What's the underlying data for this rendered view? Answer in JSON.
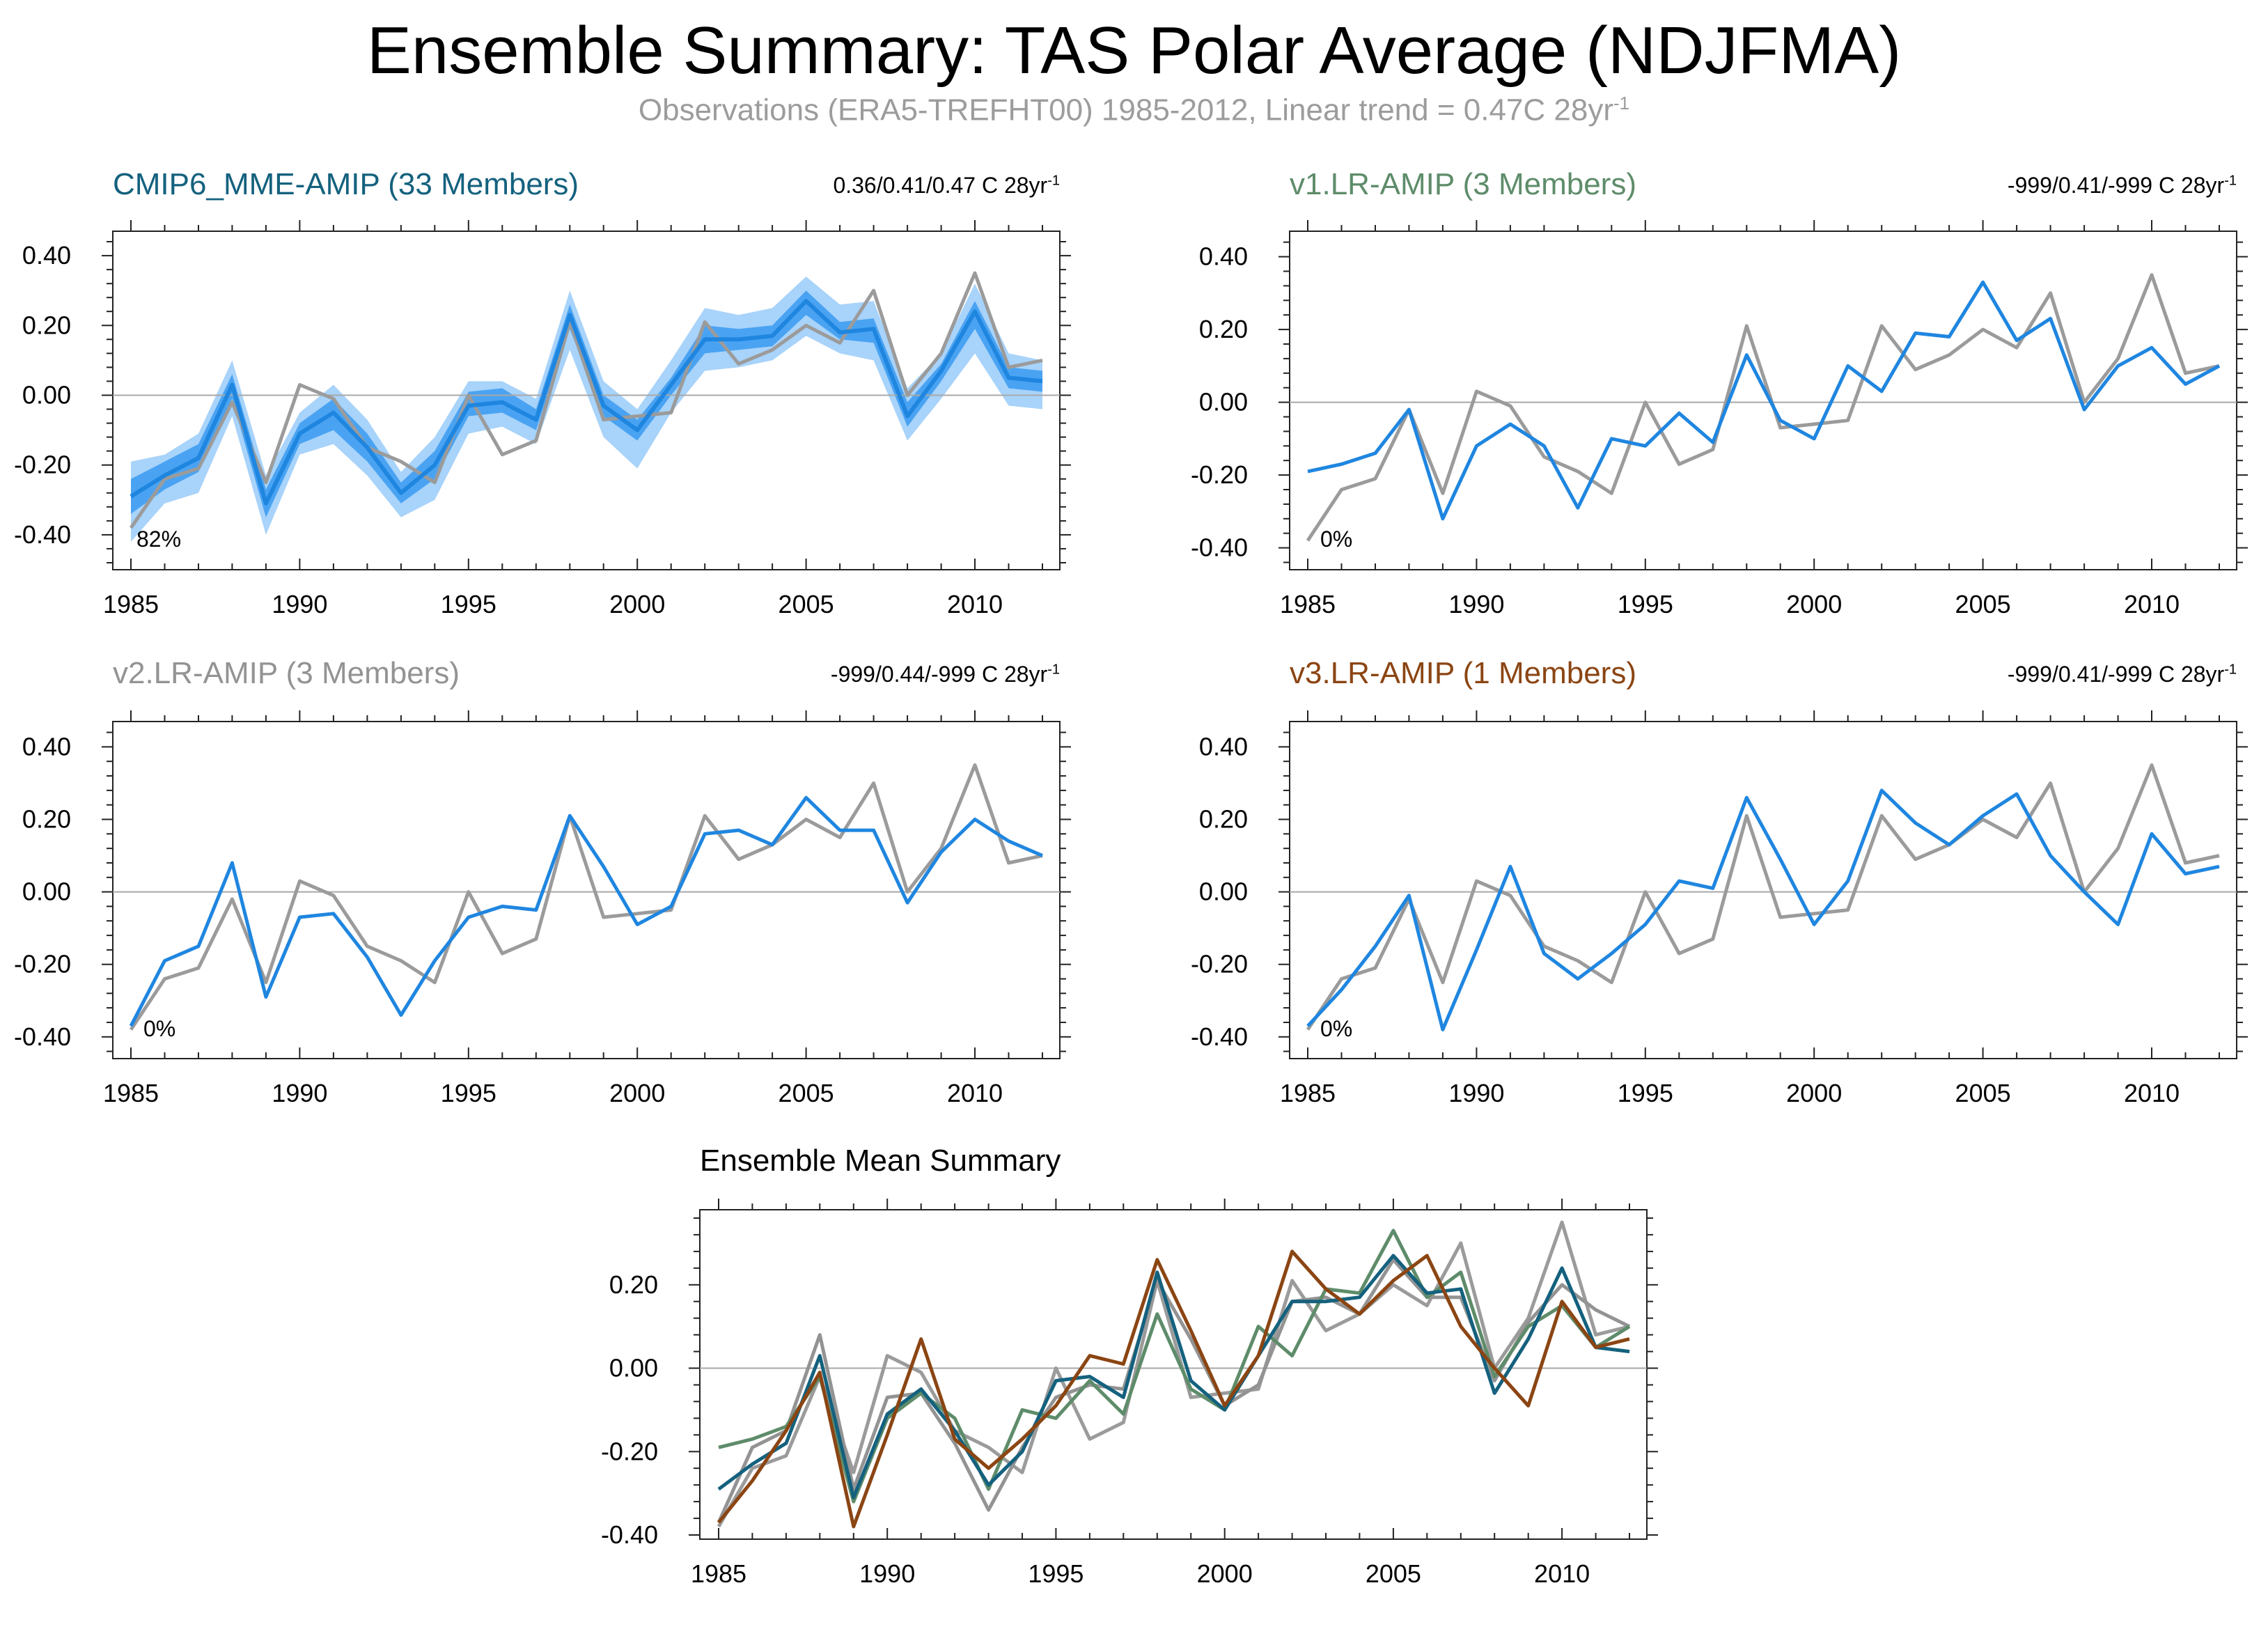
{
  "title": "Ensemble Summary: TAS Polar Average (NDJFMA)",
  "subtitle": {
    "text": "Observations (ERA5-TREFHT00) 1985-2012, Linear trend = 0.47C 28yr",
    "sup": "-1"
  },
  "colors": {
    "observations": "#9b9b9b",
    "model_line": "#1f86e0",
    "ens_inner_band": "#4aa3f2",
    "ens_outer_band": "#a8d3fa",
    "cmip6": "#14617e",
    "v1": "#5e8c6a",
    "v2": "#939393",
    "v3": "#8b4513"
  },
  "chart_data": [
    {
      "type": "line",
      "title": "CMIP6_MME-AMIP (33 Members)",
      "trend_text": "0.36/0.41/0.47 C 28yr",
      "trend_sup": "-1",
      "percent_label": "82%",
      "x": [
        1985,
        1986,
        1987,
        1988,
        1989,
        1990,
        1991,
        1992,
        1993,
        1994,
        1995,
        1996,
        1997,
        1998,
        1999,
        2000,
        2001,
        2002,
        2003,
        2004,
        2005,
        2006,
        2007,
        2008,
        2009,
        2010,
        2011,
        2012
      ],
      "xticks": [
        1985,
        1990,
        1995,
        2000,
        2005,
        2010
      ],
      "xtick_labels": [
        "1985",
        "1990",
        "1995",
        "2000",
        "2005",
        "2010"
      ],
      "yticks": [
        -0.4,
        -0.2,
        0.0,
        0.2,
        0.4
      ],
      "ytick_labels": [
        "-0.40",
        "-0.20",
        "0.00",
        "0.20",
        "0.40"
      ],
      "xlim": [
        1985,
        2012
      ],
      "ylim": [
        -0.5,
        0.47
      ],
      "grid": false,
      "zero_line": true,
      "bands": [
        {
          "name": "ensemble 10-90% range",
          "color_key": "ens_outer_band",
          "lower": [
            -0.42,
            -0.31,
            -0.28,
            -0.06,
            -0.4,
            -0.17,
            -0.14,
            -0.23,
            -0.35,
            -0.3,
            -0.11,
            -0.09,
            -0.14,
            0.13,
            -0.12,
            -0.21,
            -0.05,
            0.07,
            0.08,
            0.1,
            0.17,
            0.12,
            0.1,
            -0.13,
            -0.01,
            0.12,
            -0.03,
            -0.04
          ],
          "upper": [
            -0.19,
            -0.17,
            -0.11,
            0.1,
            -0.23,
            -0.05,
            0.03,
            -0.07,
            -0.22,
            -0.12,
            0.04,
            0.04,
            -0.01,
            0.3,
            0.04,
            -0.04,
            0.1,
            0.25,
            0.23,
            0.25,
            0.34,
            0.26,
            0.27,
            0.02,
            0.12,
            0.32,
            0.12,
            0.1
          ]
        },
        {
          "name": "ensemble interquartile range",
          "color_key": "ens_inner_band",
          "lower": [
            -0.34,
            -0.27,
            -0.22,
            -0.01,
            -0.35,
            -0.14,
            -0.1,
            -0.19,
            -0.31,
            -0.24,
            -0.06,
            -0.05,
            -0.1,
            0.19,
            -0.06,
            -0.13,
            0.0,
            0.12,
            0.13,
            0.14,
            0.23,
            0.16,
            0.15,
            -0.09,
            0.04,
            0.19,
            0.02,
            0.01
          ],
          "upper": [
            -0.24,
            -0.19,
            -0.14,
            0.06,
            -0.27,
            -0.08,
            -0.01,
            -0.11,
            -0.25,
            -0.16,
            0.01,
            0.02,
            -0.04,
            0.26,
            0.0,
            -0.07,
            0.05,
            0.2,
            0.19,
            0.2,
            0.3,
            0.21,
            0.22,
            -0.02,
            0.09,
            0.27,
            0.08,
            0.07
          ]
        }
      ],
      "series": [
        {
          "color_key": "observations",
          "values": [
            -0.38,
            -0.24,
            -0.21,
            -0.02,
            -0.25,
            0.03,
            -0.01,
            -0.15,
            -0.19,
            -0.25,
            0.0,
            -0.17,
            -0.13,
            0.21,
            -0.07,
            -0.06,
            -0.05,
            0.21,
            0.09,
            0.13,
            0.2,
            0.15,
            0.3,
            0.0,
            0.12,
            0.35,
            0.08,
            0.1
          ]
        },
        {
          "color_key": "model_line",
          "values": [
            -0.29,
            -0.23,
            -0.18,
            0.03,
            -0.31,
            -0.11,
            -0.05,
            -0.15,
            -0.28,
            -0.2,
            -0.03,
            -0.02,
            -0.07,
            0.23,
            -0.03,
            -0.1,
            0.03,
            0.16,
            0.16,
            0.17,
            0.27,
            0.18,
            0.19,
            -0.06,
            0.07,
            0.24,
            0.05,
            0.04
          ]
        }
      ]
    },
    {
      "type": "line",
      "title": "v1.LR-AMIP (3 Members)",
      "trend_text": "-999/0.41/-999 C 28yr",
      "trend_sup": "-1",
      "percent_label": "0%",
      "x": [
        1985,
        1986,
        1987,
        1988,
        1989,
        1990,
        1991,
        1992,
        1993,
        1994,
        1995,
        1996,
        1997,
        1998,
        1999,
        2000,
        2001,
        2002,
        2003,
        2004,
        2005,
        2006,
        2007,
        2008,
        2009,
        2010,
        2011,
        2012
      ],
      "xticks": [
        1985,
        1990,
        1995,
        2000,
        2005,
        2010
      ],
      "xtick_labels": [
        "1985",
        "1990",
        "1995",
        "2000",
        "2005",
        "2010"
      ],
      "yticks": [
        -0.4,
        -0.2,
        0.0,
        0.2,
        0.4
      ],
      "ytick_labels": [
        "-0.40",
        "-0.20",
        "0.00",
        "0.20",
        "0.40"
      ],
      "xlim": [
        1985,
        2012
      ],
      "ylim": [
        -0.46,
        0.47
      ],
      "grid": false,
      "zero_line": true,
      "series": [
        {
          "color_key": "observations",
          "values": [
            -0.38,
            -0.24,
            -0.21,
            -0.02,
            -0.25,
            0.03,
            -0.01,
            -0.15,
            -0.19,
            -0.25,
            0.0,
            -0.17,
            -0.13,
            0.21,
            -0.07,
            -0.06,
            -0.05,
            0.21,
            0.09,
            0.13,
            0.2,
            0.15,
            0.3,
            0.0,
            0.12,
            0.35,
            0.08,
            0.1
          ]
        },
        {
          "color_key": "model_line",
          "values": [
            -0.19,
            -0.17,
            -0.14,
            -0.02,
            -0.32,
            -0.12,
            -0.06,
            -0.12,
            -0.29,
            -0.1,
            -0.12,
            -0.03,
            -0.11,
            0.13,
            -0.05,
            -0.1,
            0.1,
            0.03,
            0.19,
            0.18,
            0.33,
            0.17,
            0.23,
            -0.02,
            0.1,
            0.15,
            0.05,
            0.1
          ]
        }
      ]
    },
    {
      "type": "line",
      "title": "v2.LR-AMIP (3 Members)",
      "trend_text": "-999/0.44/-999 C 28yr",
      "trend_sup": "-1",
      "percent_label": "0%",
      "x": [
        1985,
        1986,
        1987,
        1988,
        1989,
        1990,
        1991,
        1992,
        1993,
        1994,
        1995,
        1996,
        1997,
        1998,
        1999,
        2000,
        2001,
        2002,
        2003,
        2004,
        2005,
        2006,
        2007,
        2008,
        2009,
        2010,
        2011,
        2012
      ],
      "xticks": [
        1985,
        1990,
        1995,
        2000,
        2005,
        2010
      ],
      "xtick_labels": [
        "1985",
        "1990",
        "1995",
        "2000",
        "2005",
        "2010"
      ],
      "yticks": [
        -0.4,
        -0.2,
        0.0,
        0.2,
        0.4
      ],
      "ytick_labels": [
        "-0.40",
        "-0.20",
        "0.00",
        "0.20",
        "0.40"
      ],
      "xlim": [
        1985,
        2012
      ],
      "ylim": [
        -0.46,
        0.47
      ],
      "grid": false,
      "zero_line": true,
      "series": [
        {
          "color_key": "observations",
          "values": [
            -0.38,
            -0.24,
            -0.21,
            -0.02,
            -0.25,
            0.03,
            -0.01,
            -0.15,
            -0.19,
            -0.25,
            0.0,
            -0.17,
            -0.13,
            0.21,
            -0.07,
            -0.06,
            -0.05,
            0.21,
            0.09,
            0.13,
            0.2,
            0.15,
            0.3,
            0.0,
            0.12,
            0.35,
            0.08,
            0.1
          ]
        },
        {
          "color_key": "model_line",
          "values": [
            -0.37,
            -0.19,
            -0.15,
            0.08,
            -0.29,
            -0.07,
            -0.06,
            -0.18,
            -0.34,
            -0.19,
            -0.07,
            -0.04,
            -0.05,
            0.21,
            0.07,
            -0.09,
            -0.04,
            0.16,
            0.17,
            0.13,
            0.26,
            0.17,
            0.17,
            -0.03,
            0.11,
            0.2,
            0.14,
            0.1
          ]
        }
      ]
    },
    {
      "type": "line",
      "title": "v3.LR-AMIP (1 Members)",
      "trend_text": "-999/0.41/-999 C 28yr",
      "trend_sup": "-1",
      "percent_label": "0%",
      "x": [
        1985,
        1986,
        1987,
        1988,
        1989,
        1990,
        1991,
        1992,
        1993,
        1994,
        1995,
        1996,
        1997,
        1998,
        1999,
        2000,
        2001,
        2002,
        2003,
        2004,
        2005,
        2006,
        2007,
        2008,
        2009,
        2010,
        2011,
        2012
      ],
      "xticks": [
        1985,
        1990,
        1995,
        2000,
        2005,
        2010
      ],
      "xtick_labels": [
        "1985",
        "1990",
        "1995",
        "2000",
        "2005",
        "2010"
      ],
      "yticks": [
        -0.4,
        -0.2,
        0.0,
        0.2,
        0.4
      ],
      "ytick_labels": [
        "-0.40",
        "-0.20",
        "0.00",
        "0.20",
        "0.40"
      ],
      "xlim": [
        1985,
        2012
      ],
      "ylim": [
        -0.46,
        0.47
      ],
      "grid": false,
      "zero_line": true,
      "series": [
        {
          "color_key": "observations",
          "values": [
            -0.38,
            -0.24,
            -0.21,
            -0.02,
            -0.25,
            0.03,
            -0.01,
            -0.15,
            -0.19,
            -0.25,
            0.0,
            -0.17,
            -0.13,
            0.21,
            -0.07,
            -0.06,
            -0.05,
            0.21,
            0.09,
            0.13,
            0.2,
            0.15,
            0.3,
            0.0,
            0.12,
            0.35,
            0.08,
            0.1
          ]
        },
        {
          "color_key": "model_line",
          "values": [
            -0.37,
            -0.27,
            -0.15,
            -0.01,
            -0.38,
            -0.16,
            0.07,
            -0.17,
            -0.24,
            -0.17,
            -0.09,
            0.03,
            0.01,
            0.26,
            0.09,
            -0.09,
            0.03,
            0.28,
            0.19,
            0.13,
            0.21,
            0.27,
            0.1,
            0.0,
            -0.09,
            0.16,
            0.05,
            0.07
          ]
        }
      ]
    },
    {
      "type": "line",
      "title": "Ensemble Mean Summary",
      "x": [
        1985,
        1986,
        1987,
        1988,
        1989,
        1990,
        1991,
        1992,
        1993,
        1994,
        1995,
        1996,
        1997,
        1998,
        1999,
        2000,
        2001,
        2002,
        2003,
        2004,
        2005,
        2006,
        2007,
        2008,
        2009,
        2010,
        2011,
        2012
      ],
      "xticks": [
        1985,
        1990,
        1995,
        2000,
        2005,
        2010
      ],
      "xtick_labels": [
        "1985",
        "1990",
        "1995",
        "2000",
        "2005",
        "2010"
      ],
      "yticks": [
        -0.4,
        -0.2,
        0.0,
        0.2
      ],
      "ytick_labels": [
        "-0.40",
        "-0.20",
        "0.00",
        "0.20"
      ],
      "xlim": [
        1985,
        2012
      ],
      "ylim": [
        -0.41,
        0.38
      ],
      "grid": false,
      "zero_line": true,
      "series": [
        {
          "color_key": "observations",
          "values": [
            -0.38,
            -0.24,
            -0.21,
            -0.02,
            -0.25,
            0.03,
            -0.01,
            -0.15,
            -0.19,
            -0.25,
            0.0,
            -0.17,
            -0.13,
            0.21,
            -0.07,
            -0.06,
            -0.05,
            0.21,
            0.09,
            0.13,
            0.2,
            0.15,
            0.3,
            0.0,
            0.12,
            0.35,
            0.08,
            0.1
          ]
        },
        {
          "color_key": "v2",
          "values": [
            -0.37,
            -0.19,
            -0.15,
            0.08,
            -0.29,
            -0.07,
            -0.06,
            -0.18,
            -0.34,
            -0.19,
            -0.07,
            -0.04,
            -0.05,
            0.21,
            0.07,
            -0.09,
            -0.04,
            0.16,
            0.17,
            0.13,
            0.26,
            0.17,
            0.17,
            -0.03,
            0.11,
            0.2,
            0.14,
            0.1
          ]
        },
        {
          "color_key": "v1",
          "values": [
            -0.19,
            -0.17,
            -0.14,
            -0.02,
            -0.32,
            -0.12,
            -0.06,
            -0.12,
            -0.29,
            -0.1,
            -0.12,
            -0.03,
            -0.11,
            0.13,
            -0.05,
            -0.1,
            0.1,
            0.03,
            0.19,
            0.18,
            0.33,
            0.17,
            0.23,
            -0.02,
            0.1,
            0.15,
            0.05,
            0.1
          ]
        },
        {
          "color_key": "cmip6",
          "values": [
            -0.29,
            -0.23,
            -0.18,
            0.03,
            -0.31,
            -0.11,
            -0.05,
            -0.15,
            -0.28,
            -0.2,
            -0.03,
            -0.02,
            -0.07,
            0.23,
            -0.03,
            -0.1,
            0.03,
            0.16,
            0.16,
            0.17,
            0.27,
            0.18,
            0.19,
            -0.06,
            0.07,
            0.24,
            0.05,
            0.04
          ]
        },
        {
          "color_key": "v3",
          "values": [
            -0.37,
            -0.27,
            -0.15,
            -0.01,
            -0.38,
            -0.16,
            0.07,
            -0.17,
            -0.24,
            -0.17,
            -0.09,
            0.03,
            0.01,
            0.26,
            0.09,
            -0.09,
            0.03,
            0.28,
            0.19,
            0.13,
            0.21,
            0.27,
            0.1,
            0.0,
            -0.09,
            0.16,
            0.05,
            0.07
          ]
        }
      ]
    }
  ]
}
